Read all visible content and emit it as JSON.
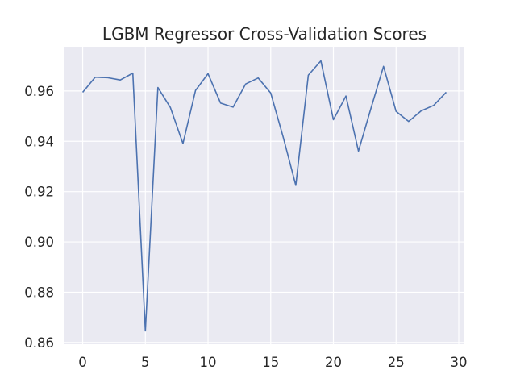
{
  "chart_data": {
    "type": "line",
    "title": "LGBM Regressor Cross-Validation Scores",
    "xlabel": "",
    "ylabel": "",
    "xlim": [
      -1.45,
      30.45
    ],
    "ylim": [
      0.8593,
      0.9776
    ],
    "x_ticks": [
      0,
      5,
      10,
      15,
      20,
      25,
      30
    ],
    "y_ticks": [
      0.86,
      0.88,
      0.9,
      0.92,
      0.94,
      0.96
    ],
    "y_tick_labels": [
      "0.86",
      "0.88",
      "0.90",
      "0.92",
      "0.94",
      "0.96"
    ],
    "x_tick_labels": [
      "0",
      "5",
      "10",
      "15",
      "20",
      "25",
      "30"
    ],
    "grid": true,
    "background_color": "#eaeaf2",
    "line_color": "#4c72b0",
    "series": [
      {
        "x": [
          0,
          1,
          2,
          3,
          4,
          5,
          6,
          7,
          8,
          9,
          10,
          11,
          12,
          13,
          14,
          15,
          16,
          17,
          18,
          19,
          20,
          21,
          22,
          23,
          24,
          25,
          26,
          27,
          28,
          29
        ],
        "values": [
          0.9595,
          0.9655,
          0.9653,
          0.9644,
          0.9671,
          0.8646,
          0.9614,
          0.9534,
          0.9391,
          0.9602,
          0.9669,
          0.9552,
          0.9536,
          0.9628,
          0.9652,
          0.9592,
          0.9416,
          0.9225,
          0.9663,
          0.972,
          0.9486,
          0.958,
          0.9361,
          0.9532,
          0.9698,
          0.9519,
          0.9479,
          0.9521,
          0.9543,
          0.9595
        ]
      }
    ]
  }
}
